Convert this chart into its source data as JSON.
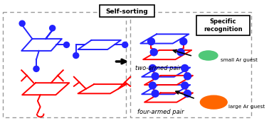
{
  "blue": "#2222ff",
  "red": "#ff0000",
  "bg": "#ffffff",
  "dash_color": "#999999",
  "black": "#000000",
  "green_guest": "#50c878",
  "orange_guest": "#ff6600",
  "self_sorting_label": "Self-sorting",
  "specific_label": "Specific\nrecognition",
  "two_armed_label": "two-armed pair",
  "four_armed_label": "four-armed pair",
  "small_guest_label": "small Ar guest",
  "large_guest_label": "large Ar guest"
}
